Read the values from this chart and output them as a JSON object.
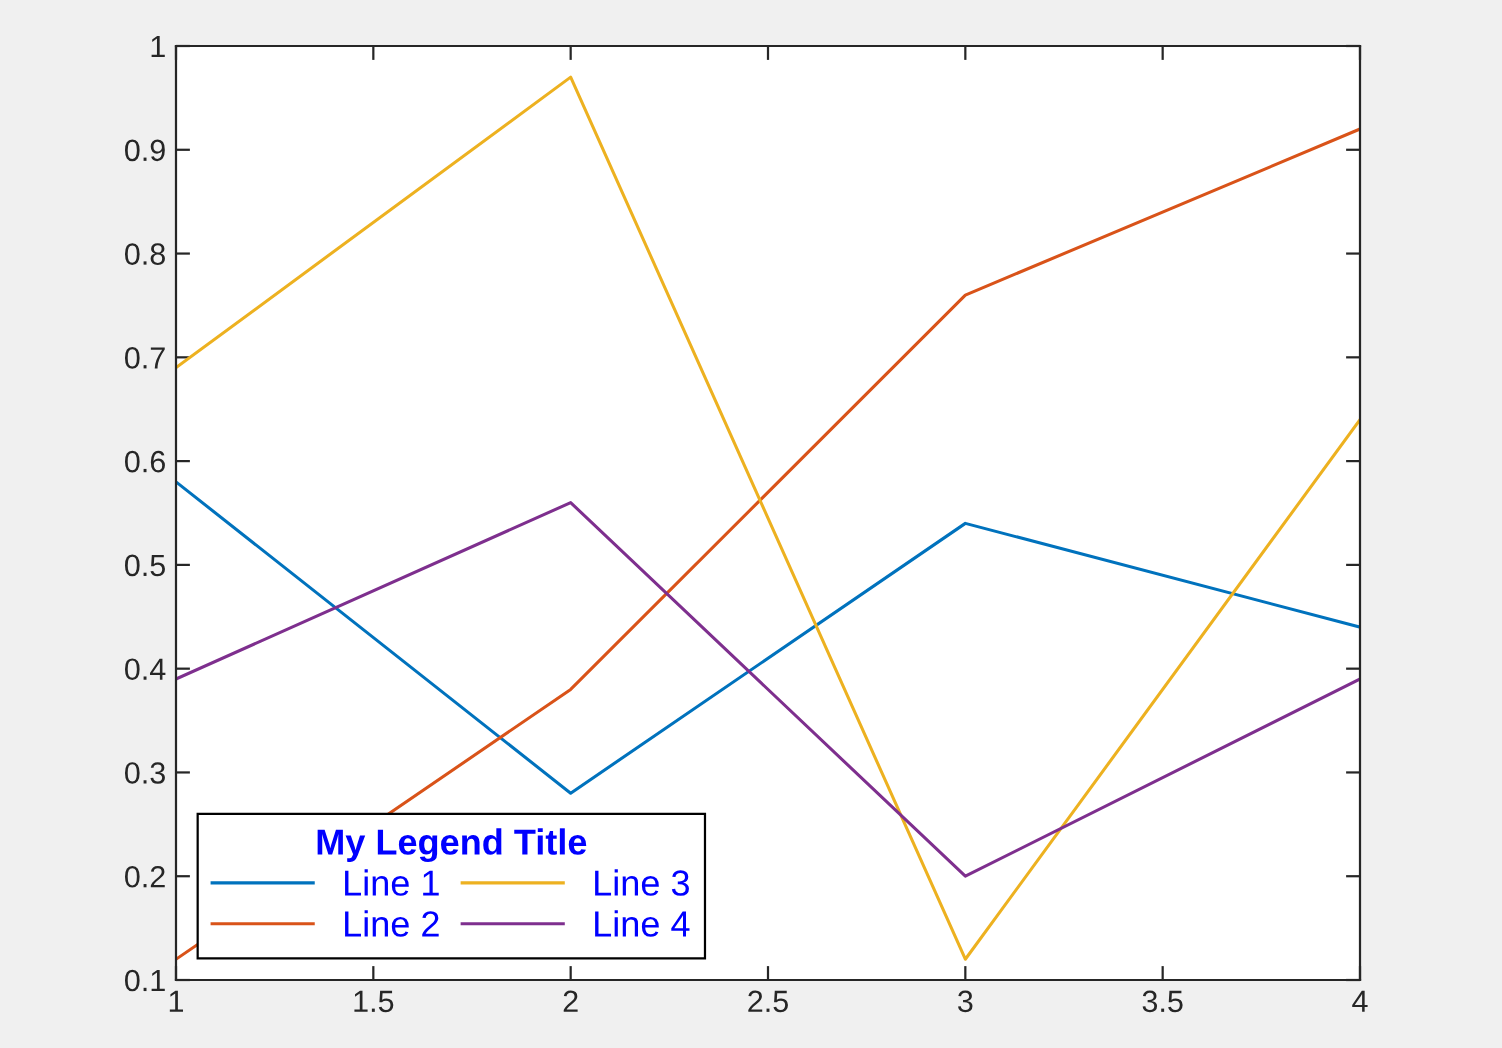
{
  "chart_data": {
    "type": "line",
    "legend_title": "My Legend Title",
    "legend": "bottom left",
    "grid": false,
    "marker": "none",
    "line_style": "solid",
    "x": [
      1,
      2,
      3,
      4
    ],
    "xlim": [
      1,
      4
    ],
    "xticks": [
      1,
      1.5,
      2,
      2.5,
      3,
      3.5,
      4
    ],
    "ylim": [
      0.1,
      1
    ],
    "yticks": [
      0.1,
      0.2,
      0.3,
      0.4,
      0.5,
      0.6,
      0.7,
      0.8,
      0.9,
      1
    ],
    "series": [
      {
        "name": "Line 1",
        "color": "#0072bd",
        "values": [
          0.58,
          0.28,
          0.54,
          0.44
        ]
      },
      {
        "name": "Line 2",
        "color": "#d95319",
        "values": [
          0.12,
          0.38,
          0.76,
          0.92
        ]
      },
      {
        "name": "Line 3",
        "color": "#edb120",
        "values": [
          0.69,
          0.97,
          0.12,
          0.64
        ]
      },
      {
        "name": "Line 4",
        "color": "#7e2f8e",
        "values": [
          0.39,
          0.56,
          0.2,
          0.39
        ]
      }
    ]
  }
}
